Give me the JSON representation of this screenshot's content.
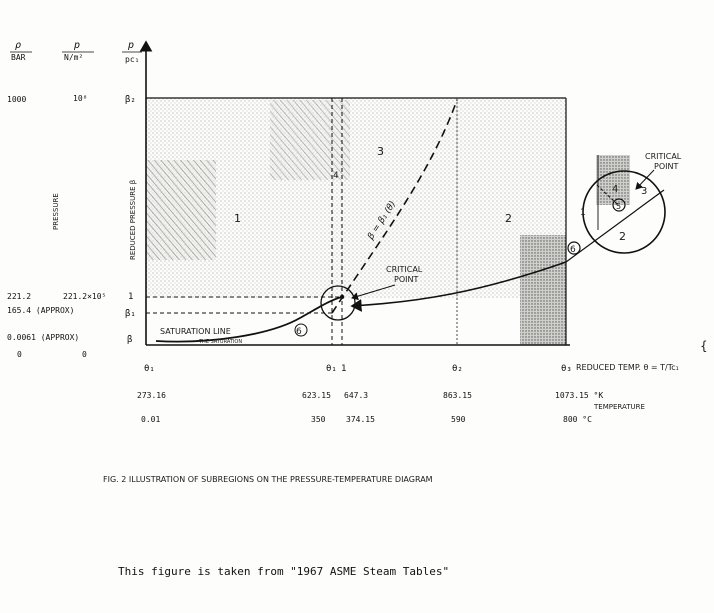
{
  "units": {
    "bar_head": "ρ",
    "bar_unit": "BAR",
    "nm_head": "p",
    "nm_unit": "N/m²",
    "red_head": "p",
    "red_unit": "pc₁"
  },
  "pressure_rows": {
    "r1": {
      "bar": "1000",
      "nm": "10⁸",
      "beta": "β₂"
    },
    "r2": {
      "bar": "221.2",
      "nm": "221.2×10⁵",
      "beta": "1"
    },
    "r3": {
      "bar": "165.4 (APPROX)",
      "beta": "β₁"
    },
    "r4": {
      "bar": "0.0061 (APPROX)",
      "beta": "β"
    },
    "r5": {
      "bar": "0",
      "nm": "0"
    }
  },
  "axis_labels": {
    "pressure": "PRESSURE",
    "reduced_pressure": "REDUCED PRESSURE β",
    "reduced_temp": "REDUCED TEMP. θ = T/Tc₁",
    "temperature": "TEMPERATURE"
  },
  "theta_ticks": {
    "t0": "θ₁",
    "t1": "θ₁",
    "t1b": "1",
    "t2": "θ₂",
    "t3": "θ₃"
  },
  "kelvin_row": {
    "a": "273.16",
    "b": "623.15",
    "c": "647.3",
    "d": "863.15",
    "e": "1073.15 °K"
  },
  "celsius_row": {
    "a": "0.01",
    "b": "350",
    "c": "374.15",
    "d": "590",
    "e": "800 °C"
  },
  "regions": {
    "r1": "1",
    "r2": "2",
    "r3": "3",
    "r4": "4",
    "r5": "5",
    "r6": "6"
  },
  "curve_label": "β = β₁ (θ)",
  "critical_point": {
    "line1": "CRITICAL",
    "line2": "POINT"
  },
  "saturation": {
    "line1": "SATURATION LINE",
    "line2": "THE SATURATION"
  },
  "caption": "FIG. 2  ILLUSTRATION OF SUBREGIONS ON THE PRESSURE-TEMPERATURE DIAGRAM",
  "source_note": "This figure is taken from \"1967 ASME Steam Tables\""
}
